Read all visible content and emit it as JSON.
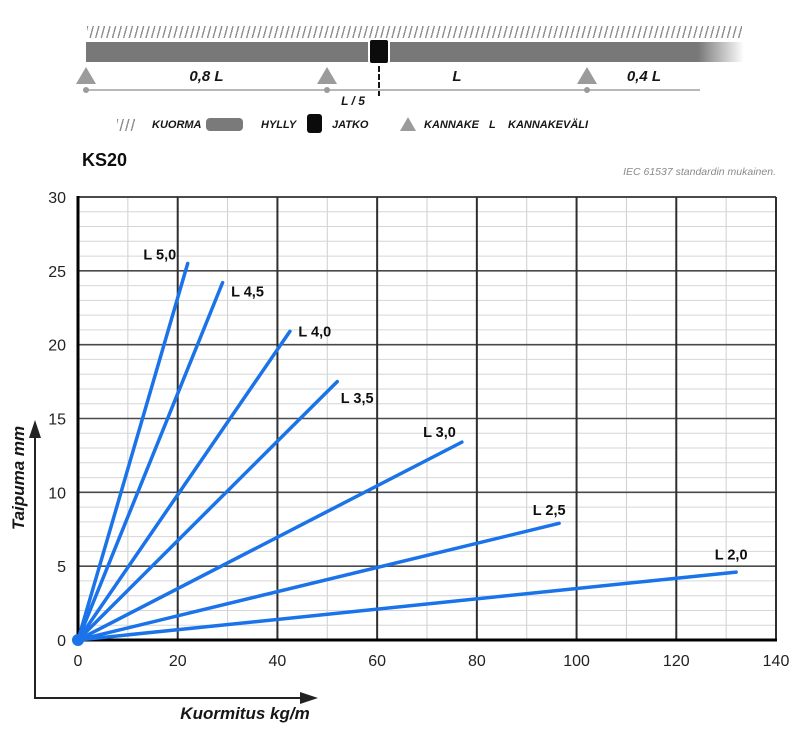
{
  "diagram": {
    "span_left": "0,8 L",
    "span_mid": "L",
    "span_right": "0,4 L",
    "joint_offset": "L / 5"
  },
  "legend": {
    "items": [
      {
        "symbol": "hatch-swatch",
        "label": "KUORMA"
      },
      {
        "symbol": "bar-swatch",
        "label": "HYLLY"
      },
      {
        "symbol": "square-swatch",
        "label": "JATKO"
      },
      {
        "symbol": "triangle-swatch",
        "label": "KANNAKE"
      },
      {
        "symbol": "letter",
        "letter": "L",
        "label": "KANNAKEVÄLI"
      }
    ]
  },
  "chart": {
    "title": "KS20",
    "note": "IEC 61537 standardin mukainen.",
    "xlabel": "Kuormitus kg/m",
    "ylabel": "Taipuma mm"
  },
  "chart_data": {
    "type": "line",
    "title": "KS20",
    "xlabel": "Kuormitus kg/m",
    "ylabel": "Taipuma mm",
    "xlim": [
      0,
      140
    ],
    "ylim": [
      0,
      30
    ],
    "x_major_ticks": [
      0,
      20,
      40,
      60,
      80,
      100,
      120,
      140
    ],
    "y_major_ticks": [
      0,
      5,
      10,
      15,
      20,
      25,
      30
    ],
    "x_minor_step": 10,
    "y_minor_step": 1,
    "grid": true,
    "legend_position": "inline-labels",
    "line_color": "#1a73e8",
    "major_grid_color": "#4a4a4a",
    "major_vgrid_color": "#2e2e2e",
    "minor_grid_color": "#cfcfcf",
    "axis_color": "#000000",
    "tick_label_color": "#222222",
    "series": [
      {
        "name": "L 5,0",
        "points": [
          [
            0,
            0
          ],
          [
            22,
            25.5
          ]
        ],
        "label_at": [
          16.4,
          26.1
        ]
      },
      {
        "name": "L 4,5",
        "points": [
          [
            0,
            0
          ],
          [
            29,
            24.2
          ]
        ],
        "label_at": [
          34.0,
          23.6
        ]
      },
      {
        "name": "L 4,0",
        "points": [
          [
            0,
            0
          ],
          [
            42.5,
            20.9
          ]
        ],
        "label_at": [
          47.5,
          20.9
        ]
      },
      {
        "name": "L 3,5",
        "points": [
          [
            0,
            0
          ],
          [
            52,
            17.5
          ]
        ],
        "label_at": [
          56.0,
          16.4
        ]
      },
      {
        "name": "L 3,0",
        "points": [
          [
            0,
            0
          ],
          [
            77,
            13.4
          ]
        ],
        "label_at": [
          72.5,
          14.1
        ]
      },
      {
        "name": "L 2,5",
        "points": [
          [
            0,
            0
          ],
          [
            96.5,
            7.9
          ]
        ],
        "label_at": [
          94.5,
          8.8
        ]
      },
      {
        "name": "L 2,0",
        "points": [
          [
            0,
            0
          ],
          [
            132,
            4.6
          ]
        ],
        "label_at": [
          131.0,
          5.8
        ]
      }
    ]
  }
}
